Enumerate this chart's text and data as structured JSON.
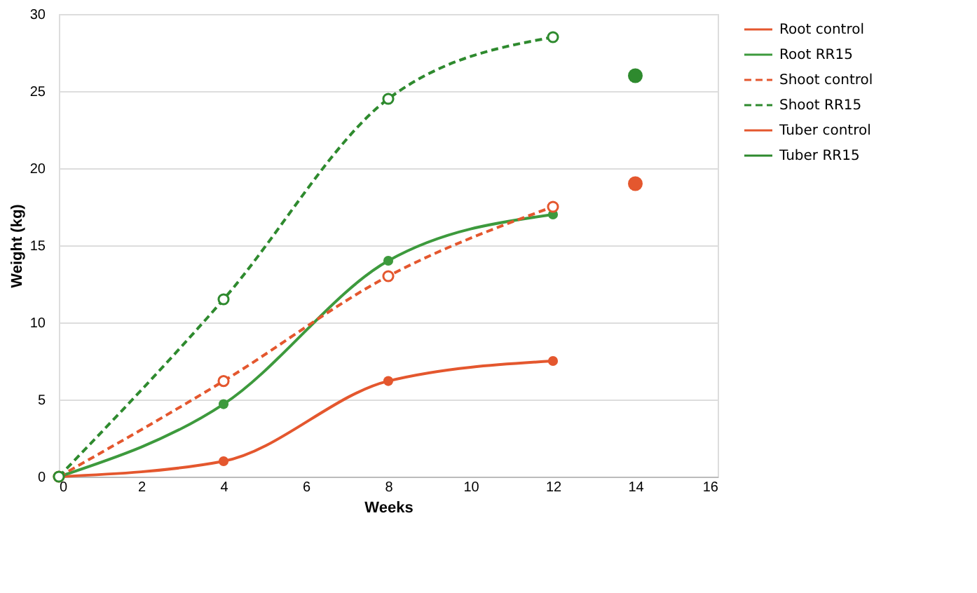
{
  "chart_data": {
    "type": "line",
    "xlabel": "Weeks",
    "ylabel": "Weight (kg)",
    "x": [
      0,
      4,
      8,
      12
    ],
    "series": [
      {
        "name": "Root control",
        "color": "#e4572e",
        "values": [
          0,
          1,
          6.2,
          7.5
        ],
        "line_style": "solid",
        "marker": "circle"
      },
      {
        "name": "Root RR15",
        "color": "#3d9a3d",
        "values": [
          0,
          4.7,
          14,
          17
        ],
        "line_style": "solid",
        "marker": "circle"
      },
      {
        "name": "Shoot control",
        "color": "#e4572e",
        "values": [
          0,
          6.2,
          13,
          17.5
        ],
        "line_style": "dashed",
        "marker": "circle"
      },
      {
        "name": "Shoot RR15",
        "color": "#2e8a2e",
        "values": [
          0,
          11.5,
          24.5,
          28.5
        ],
        "line_style": "dashed",
        "marker": "circle"
      },
      {
        "name": "Tuber control",
        "type": "scatter",
        "color": "#e4572e",
        "x": [
          14
        ],
        "values": [
          19
        ],
        "marker": "circle"
      },
      {
        "name": "Tuber RR15",
        "type": "scatter",
        "color": "#2e8a2e",
        "x": [
          14
        ],
        "values": [
          26
        ],
        "marker": "circle"
      }
    ],
    "xlim": [
      0,
      16
    ],
    "xticks": [
      0,
      2,
      4,
      6,
      8,
      10,
      12,
      14,
      16
    ],
    "ylim": [
      0,
      30
    ],
    "yticks": [
      0,
      5,
      10,
      15,
      20,
      25,
      30
    ],
    "grid": "y",
    "legend": "right"
  }
}
